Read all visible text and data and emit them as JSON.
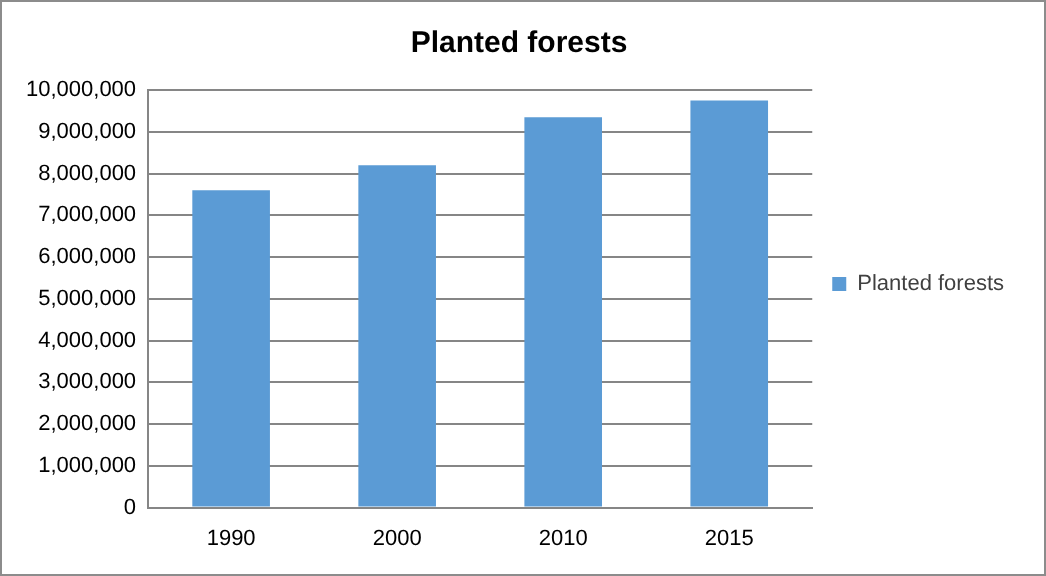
{
  "chart_data": {
    "type": "bar",
    "title": "Planted forests",
    "categories": [
      "1990",
      "2000",
      "2010",
      "2015"
    ],
    "series": [
      {
        "name": "Planted forests",
        "color": "#5b9bd5",
        "values": [
          7600000,
          8200000,
          9350000,
          9750000
        ]
      }
    ],
    "ylim": [
      0,
      10000000
    ],
    "yticks": [
      0,
      {
        "value": 1000000,
        "label": "1,000,000"
      },
      {
        "value": 2000000,
        "label": "2,000,000"
      },
      {
        "value": 3000000,
        "label": "3,000,000"
      },
      {
        "value": 4000000,
        "label": "4,000,000"
      },
      {
        "value": 5000000,
        "label": "5,000,000"
      },
      {
        "value": 6000000,
        "label": "6,000,000"
      },
      {
        "value": 7000000,
        "label": "7,000,000"
      },
      {
        "value": 8000000,
        "label": "8,000,000"
      },
      {
        "value": 9000000,
        "label": "9,000,000"
      },
      {
        "value": 10000000,
        "label": "10,000,000"
      }
    ],
    "grid": "y",
    "legend": "right"
  }
}
